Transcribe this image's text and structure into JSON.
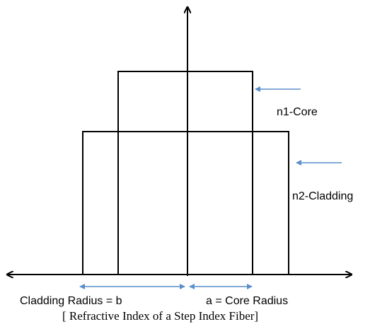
{
  "labels": {
    "core": "n1-Core",
    "cladding": "n2-Cladding",
    "cladding_radius": "Cladding Radius = b",
    "core_radius": "a = Core Radius"
  },
  "caption": "[ Refractive Index of a Step Index Fiber]"
}
